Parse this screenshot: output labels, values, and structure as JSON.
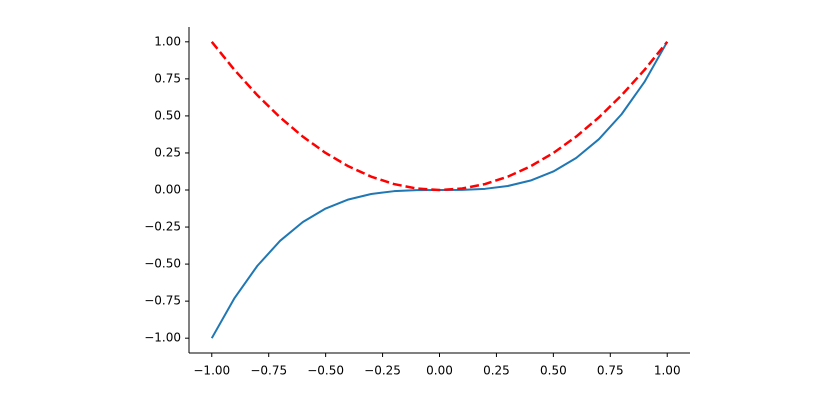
{
  "chart_data": {
    "type": "line",
    "x": [
      -1,
      -0.9,
      -0.8,
      -0.7,
      -0.6,
      -0.5,
      -0.4,
      -0.3,
      -0.2,
      -0.1,
      0,
      0.1,
      0.2,
      0.3,
      0.4,
      0.5,
      0.6,
      0.7,
      0.8,
      0.9,
      1
    ],
    "series": [
      {
        "color": "#1f77b4",
        "linestyle": "-",
        "values": [
          -1,
          -0.729,
          -0.512,
          -0.343,
          -0.216,
          -0.125,
          -0.064,
          -0.027,
          -0.008,
          -0.001,
          0,
          0.001,
          0.008,
          0.027,
          0.064,
          0.125,
          0.216,
          0.343,
          0.512,
          0.729,
          1
        ]
      },
      {
        "color": "#ff0000",
        "linestyle": "--",
        "values": [
          1,
          0.81,
          0.64,
          0.49,
          0.36,
          0.25,
          0.16,
          0.09,
          0.04,
          0.01,
          0,
          0.01,
          0.04,
          0.09,
          0.16,
          0.25,
          0.36,
          0.49,
          0.64,
          0.81,
          1
        ]
      }
    ],
    "xlim": [
      -1.1,
      1.1
    ],
    "ylim": [
      -1.1,
      1.1
    ],
    "xticks": [
      {
        "value": -1,
        "label": "−1.00"
      },
      {
        "value": -0.75,
        "label": "−0.75"
      },
      {
        "value": -0.5,
        "label": "−0.50"
      },
      {
        "value": -0.25,
        "label": "−0.25"
      },
      {
        "value": 0,
        "label": "0.00"
      },
      {
        "value": 0.25,
        "label": "0.25"
      },
      {
        "value": 0.5,
        "label": "0.50"
      },
      {
        "value": 0.75,
        "label": "0.75"
      },
      {
        "value": 1,
        "label": "1.00"
      }
    ],
    "yticks": [
      {
        "value": -1,
        "label": "−1.00"
      },
      {
        "value": -0.75,
        "label": "−0.75"
      },
      {
        "value": -0.5,
        "label": "−0.50"
      },
      {
        "value": -0.25,
        "label": "−0.25"
      },
      {
        "value": 0,
        "label": "0.00"
      },
      {
        "value": 0.25,
        "label": "0.25"
      },
      {
        "value": 0.5,
        "label": "0.50"
      },
      {
        "value": 0.75,
        "label": "0.75"
      },
      {
        "value": 1,
        "label": "1.00"
      }
    ],
    "grid": false
  }
}
